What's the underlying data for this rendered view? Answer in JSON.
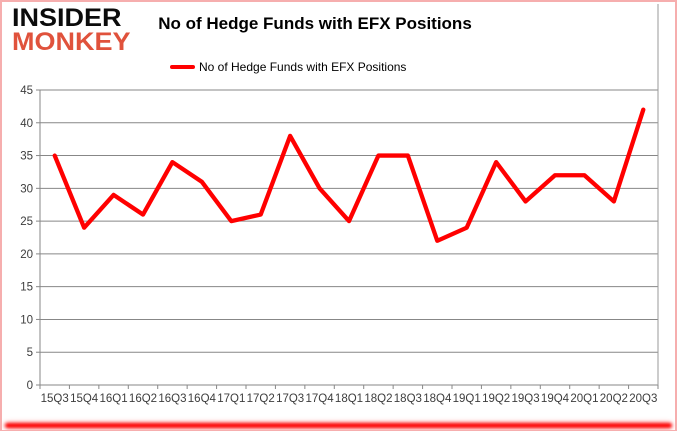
{
  "logo": {
    "line1": "INSIDER",
    "line2": "MONKEY"
  },
  "header": {
    "title": "No of Hedge Funds with EFX Positions"
  },
  "legend": {
    "label": "No of Hedge Funds with EFX Positions"
  },
  "colors": {
    "series": "#ff0000",
    "gridline": "#878787",
    "axis_line": "#878787",
    "chart_border": "#9a9a9a",
    "axis_text": "#3d3d3d",
    "logo_accent": "#e0523c",
    "border_glow": "#fb0000"
  },
  "chart_data": {
    "type": "line",
    "title": "No of Hedge Funds with EFX Positions",
    "categories": [
      "15Q3",
      "15Q4",
      "16Q1",
      "16Q2",
      "16Q3",
      "16Q4",
      "17Q1",
      "17Q2",
      "17Q3",
      "17Q4",
      "18Q1",
      "18Q2",
      "18Q3",
      "18Q4",
      "19Q1",
      "19Q2",
      "19Q3",
      "19Q4",
      "20Q1",
      "20Q2",
      "20Q3"
    ],
    "series": [
      {
        "name": "No of Hedge Funds with EFX Positions",
        "color": "#ff0000",
        "values": [
          35,
          24,
          29,
          26,
          34,
          31,
          25,
          26,
          38,
          30,
          25,
          35,
          35,
          22,
          24,
          34,
          28,
          32,
          32,
          28,
          42
        ]
      }
    ],
    "xlabel": "",
    "ylabel": "",
    "ylim": [
      0,
      45
    ],
    "y_ticks": [
      0,
      5,
      10,
      15,
      20,
      25,
      30,
      35,
      40,
      45
    ],
    "grid": true,
    "legend_position": "top-center"
  }
}
